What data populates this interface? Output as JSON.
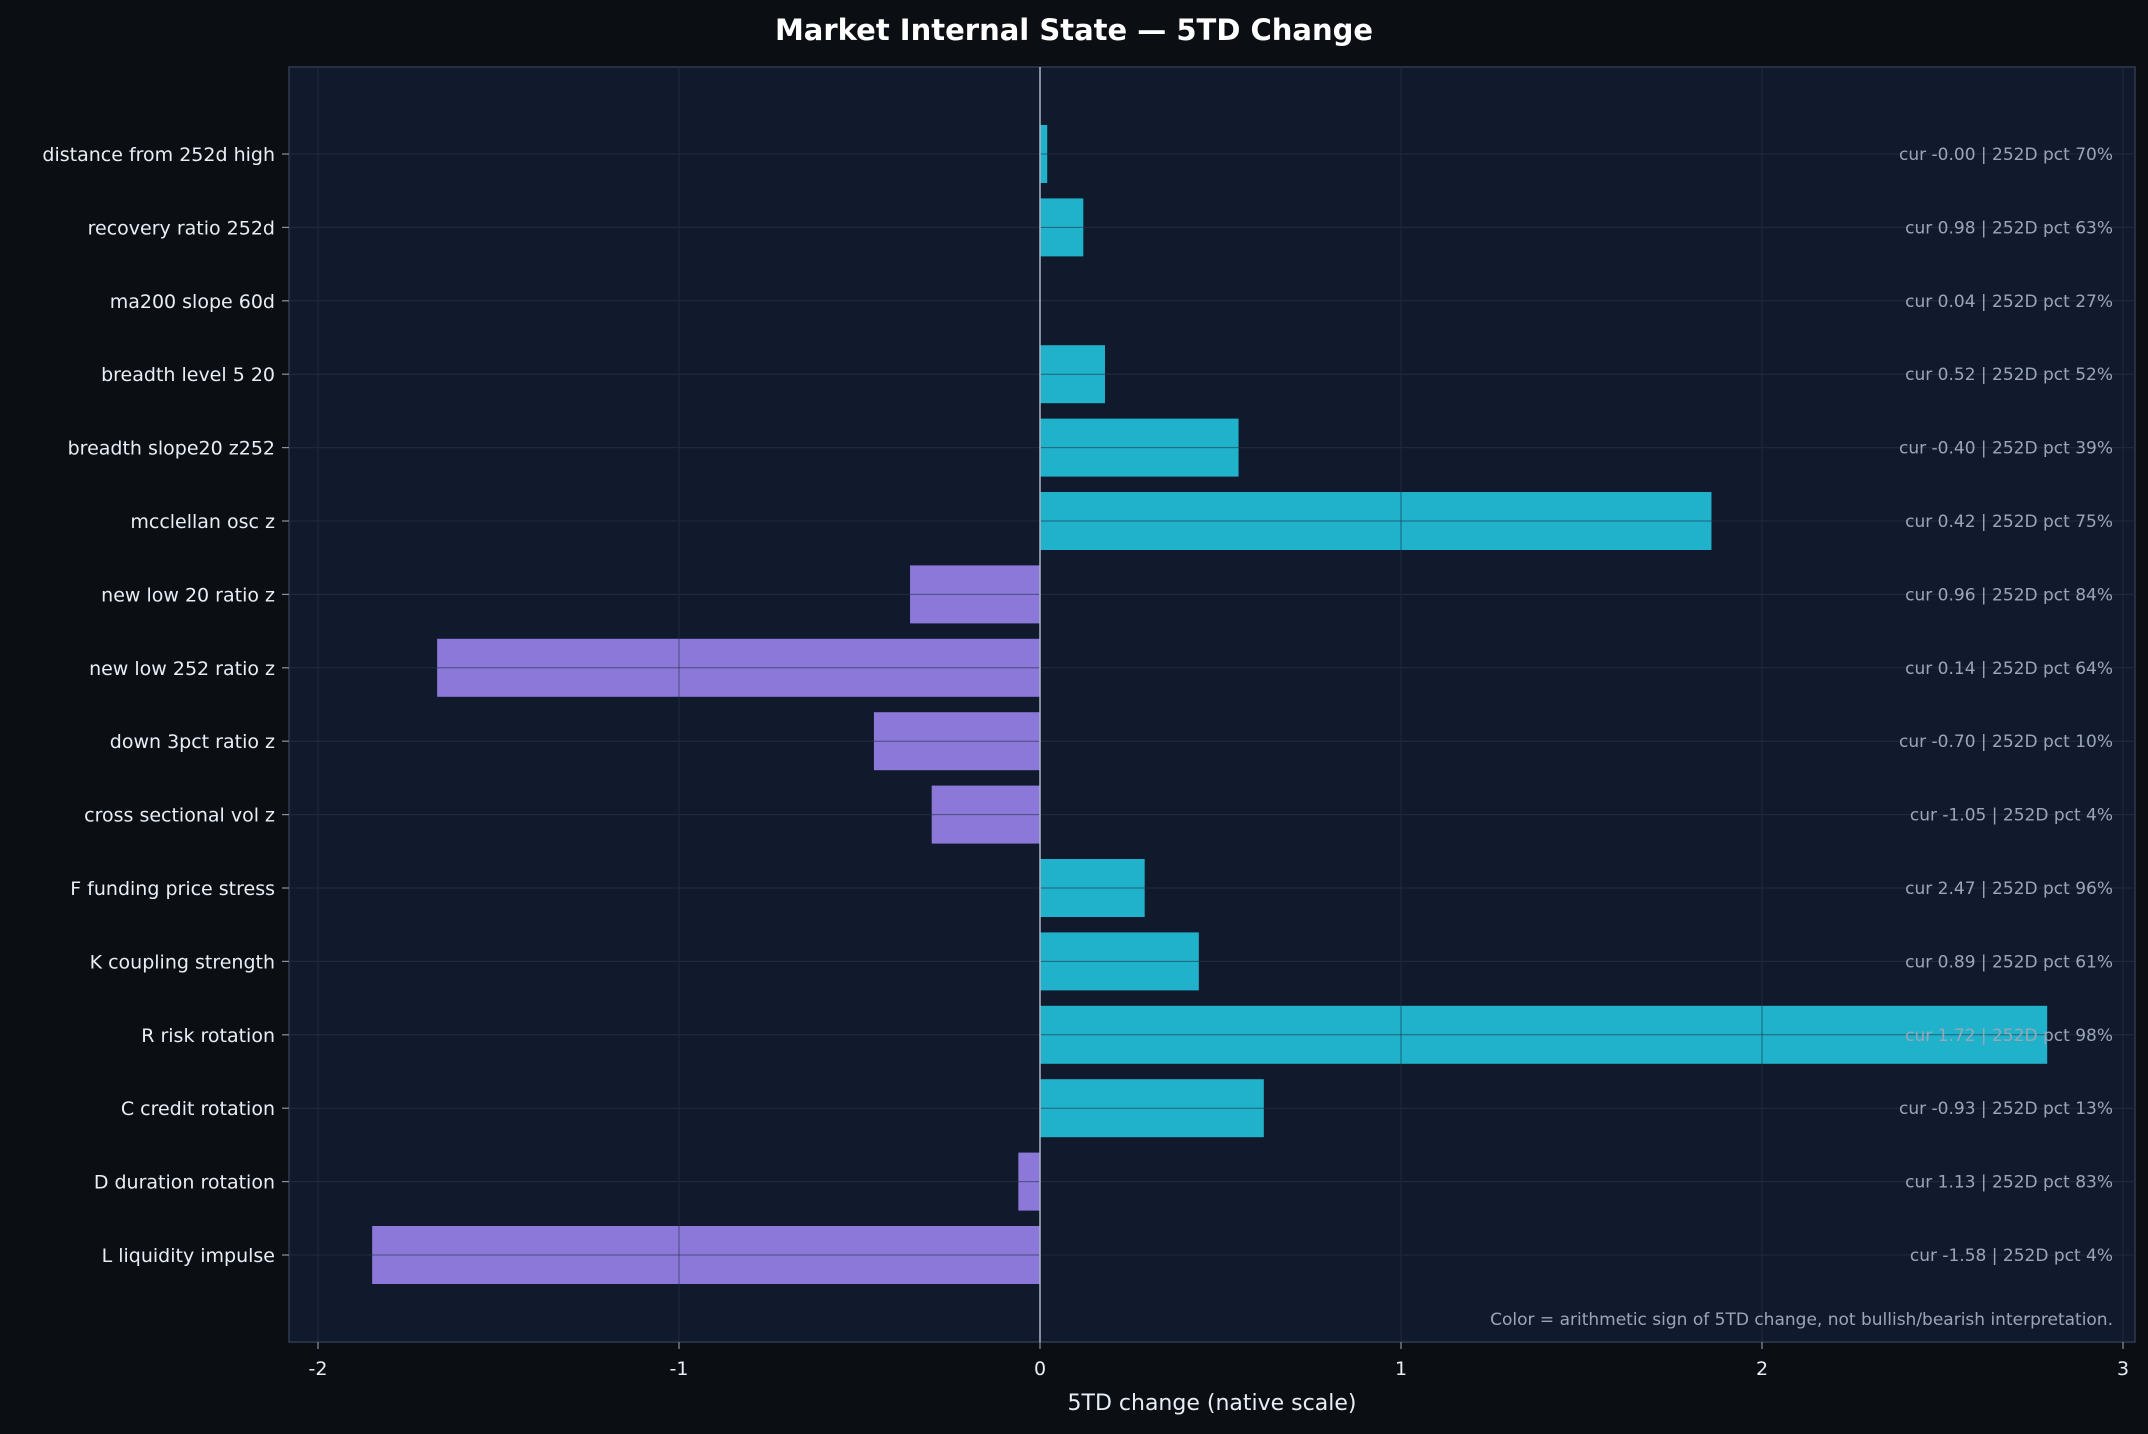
{
  "title": "Market Internal State — 5TD Change",
  "note": "Color = arithmetic sign of 5TD change, not bullish/bearish interpretation.",
  "colors": {
    "page_bg": "#0b0f13",
    "plot_bg": "#111a2c",
    "grid": "#243049",
    "positive": "#20b1cb",
    "negative": "#8b78d8",
    "text": "#e8eef6",
    "annotation": "#9aa6b8"
  },
  "chart_data": {
    "type": "bar",
    "orientation": "horizontal",
    "title": "Market Internal State — 5TD Change",
    "xlabel": "5TD change (native scale)",
    "ylabel": "",
    "xlim": [
      -2.1,
      3.0
    ],
    "xticks": [
      -2,
      -1,
      0,
      1,
      2,
      3
    ],
    "grid": true,
    "categories": [
      "distance from 252d high",
      "recovery ratio 252d",
      "ma200 slope 60d",
      "breadth level 5 20",
      "breadth slope20 z252",
      "mcclellan osc z",
      "new low 20 ratio z",
      "new low 252 ratio z",
      "down 3pct ratio z",
      "cross sectional vol z",
      "F funding price stress",
      "K coupling strength",
      "R risk rotation",
      "C credit rotation",
      "D duration rotation",
      "L liquidity impulse"
    ],
    "values": [
      0.02,
      0.12,
      0.0,
      0.18,
      0.55,
      1.86,
      -0.36,
      -1.67,
      -0.46,
      -0.3,
      0.29,
      0.44,
      2.79,
      0.62,
      -0.06,
      -1.85
    ],
    "annotations": [
      "cur -0.00 | 252D pct 70%",
      "cur 0.98 | 252D pct 63%",
      "cur 0.04 | 252D pct 27%",
      "cur 0.52 | 252D pct 52%",
      "cur -0.40 | 252D pct 39%",
      "cur 0.42 | 252D pct 75%",
      "cur 0.96 | 252D pct 84%",
      "cur 0.14 | 252D pct 64%",
      "cur -0.70 | 252D pct 10%",
      "cur -1.05 | 252D pct 4%",
      "cur 2.47 | 252D pct 96%",
      "cur 0.89 | 252D pct 61%",
      "cur 1.72 | 252D pct 98%",
      "cur -0.93 | 252D pct 13%",
      "cur 1.13 | 252D pct 83%",
      "cur -1.58 | 252D pct 4%"
    ]
  }
}
